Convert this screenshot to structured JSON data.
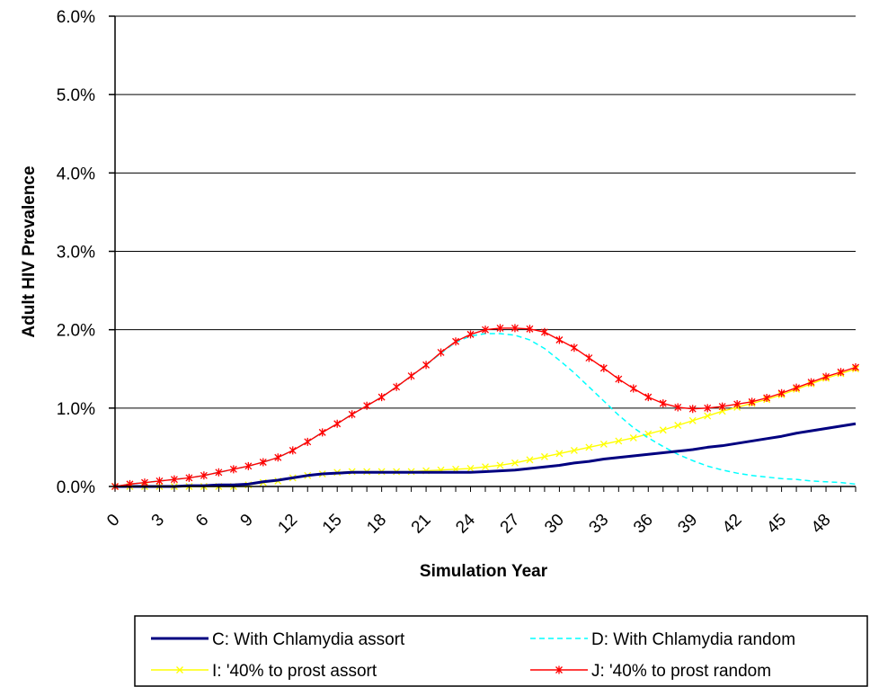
{
  "chart_data": {
    "type": "line",
    "title": "",
    "xlabel": "Simulation Year",
    "ylabel": "Adult HIV Prevalence",
    "xlim": [
      0,
      50
    ],
    "ylim": [
      0,
      6
    ],
    "y_tick_labels": [
      "0.0%",
      "1.0%",
      "2.0%",
      "3.0%",
      "4.0%",
      "5.0%",
      "6.0%"
    ],
    "y_tick_values": [
      0,
      1,
      2,
      3,
      4,
      5,
      6
    ],
    "x_tick_labels": [
      "0",
      "3",
      "6",
      "9",
      "12",
      "15",
      "18",
      "21",
      "24",
      "27",
      "30",
      "33",
      "36",
      "39",
      "42",
      "45",
      "48"
    ],
    "x_tick_values": [
      0,
      3,
      6,
      9,
      12,
      15,
      18,
      21,
      24,
      27,
      30,
      33,
      36,
      39,
      42,
      45,
      48
    ],
    "grid": "horizontal",
    "legend_position": "bottom",
    "x": [
      0,
      1,
      2,
      3,
      4,
      5,
      6,
      7,
      8,
      9,
      10,
      11,
      12,
      13,
      14,
      15,
      16,
      17,
      18,
      19,
      20,
      21,
      22,
      23,
      24,
      25,
      26,
      27,
      28,
      29,
      30,
      31,
      32,
      33,
      34,
      35,
      36,
      37,
      38,
      39,
      40,
      41,
      42,
      43,
      44,
      45,
      46,
      47,
      48,
      49,
      50
    ],
    "series": [
      {
        "name": "C: With Chlamydia assort",
        "color": "#000080",
        "style": "solid",
        "marker": "none",
        "values": [
          0,
          0,
          0,
          0,
          0,
          0.01,
          0.01,
          0.02,
          0.02,
          0.03,
          0.06,
          0.08,
          0.11,
          0.14,
          0.16,
          0.17,
          0.18,
          0.18,
          0.18,
          0.18,
          0.18,
          0.18,
          0.18,
          0.18,
          0.18,
          0.19,
          0.2,
          0.21,
          0.23,
          0.25,
          0.27,
          0.3,
          0.32,
          0.35,
          0.37,
          0.39,
          0.41,
          0.43,
          0.45,
          0.47,
          0.5,
          0.52,
          0.55,
          0.58,
          0.61,
          0.64,
          0.68,
          0.71,
          0.74,
          0.77,
          0.8
        ]
      },
      {
        "name": "D: With Chlamydia random",
        "color": "#00FFFF",
        "style": "dashed",
        "marker": "none",
        "values": [
          0,
          0.03,
          0.05,
          0.07,
          0.09,
          0.11,
          0.14,
          0.18,
          0.22,
          0.26,
          0.31,
          0.37,
          0.46,
          0.57,
          0.69,
          0.8,
          0.92,
          1.03,
          1.14,
          1.27,
          1.41,
          1.55,
          1.7,
          1.84,
          1.92,
          1.95,
          1.95,
          1.93,
          1.87,
          1.76,
          1.61,
          1.45,
          1.27,
          1.09,
          0.91,
          0.75,
          0.62,
          0.51,
          0.41,
          0.33,
          0.26,
          0.21,
          0.17,
          0.14,
          0.12,
          0.1,
          0.09,
          0.07,
          0.06,
          0.05,
          0.03
        ]
      },
      {
        "name": "I: '40% to prost assort",
        "color": "#FFFF00",
        "style": "solid",
        "marker": "x",
        "values": [
          0,
          0,
          0,
          0,
          0,
          0,
          0,
          0,
          0,
          0.02,
          0.05,
          0.07,
          0.11,
          0.14,
          0.16,
          0.18,
          0.19,
          0.19,
          0.19,
          0.19,
          0.19,
          0.2,
          0.21,
          0.22,
          0.23,
          0.25,
          0.27,
          0.3,
          0.34,
          0.38,
          0.42,
          0.46,
          0.5,
          0.54,
          0.58,
          0.62,
          0.67,
          0.72,
          0.78,
          0.84,
          0.9,
          0.96,
          1.01,
          1.06,
          1.11,
          1.17,
          1.24,
          1.31,
          1.38,
          1.44,
          1.5
        ]
      },
      {
        "name": "J: '40% to prost random",
        "color": "#FF0000",
        "style": "solid",
        "marker": "star",
        "values": [
          0,
          0.03,
          0.05,
          0.07,
          0.09,
          0.11,
          0.14,
          0.18,
          0.22,
          0.26,
          0.31,
          0.37,
          0.46,
          0.57,
          0.69,
          0.8,
          0.92,
          1.03,
          1.14,
          1.27,
          1.41,
          1.55,
          1.71,
          1.85,
          1.94,
          2.0,
          2.02,
          2.02,
          2.01,
          1.97,
          1.87,
          1.77,
          1.64,
          1.51,
          1.37,
          1.25,
          1.14,
          1.06,
          1.01,
          0.99,
          1.0,
          1.02,
          1.05,
          1.08,
          1.13,
          1.19,
          1.26,
          1.33,
          1.4,
          1.46,
          1.52
        ]
      }
    ]
  }
}
